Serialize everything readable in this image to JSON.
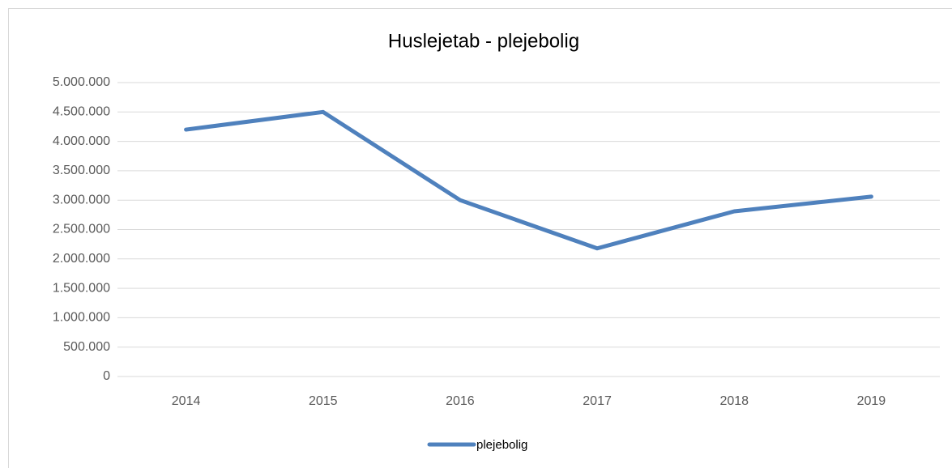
{
  "chart_data": {
    "type": "line",
    "title": "Huslejetab - plejebolig",
    "categories": [
      "2014",
      "2015",
      "2016",
      "2017",
      "2018",
      "2019"
    ],
    "series": [
      {
        "name": "plejebolig",
        "color": "#4f81bd",
        "values": [
          4200000,
          4500000,
          3000000,
          2180000,
          2810000,
          3060000
        ]
      }
    ],
    "ylim": [
      0,
      5000000
    ],
    "yticks": [
      0,
      {
        "value": 500000,
        "label": "500.000"
      },
      {
        "value": 1000000,
        "label": "1.000.000"
      },
      {
        "value": 1500000,
        "label": "1.500.000"
      },
      {
        "value": 2000000,
        "label": "2.000.000"
      },
      {
        "value": 2500000,
        "label": "2.500.000"
      },
      {
        "value": 3000000,
        "label": "3.000.000"
      },
      {
        "value": 3500000,
        "label": "3.500.000"
      },
      {
        "value": 4000000,
        "label": "4.000.000"
      },
      {
        "value": 4500000,
        "label": "4.500.000"
      },
      {
        "value": 5000000,
        "label": "5.000.000"
      }
    ],
    "grid": true,
    "legend": "bottom"
  }
}
